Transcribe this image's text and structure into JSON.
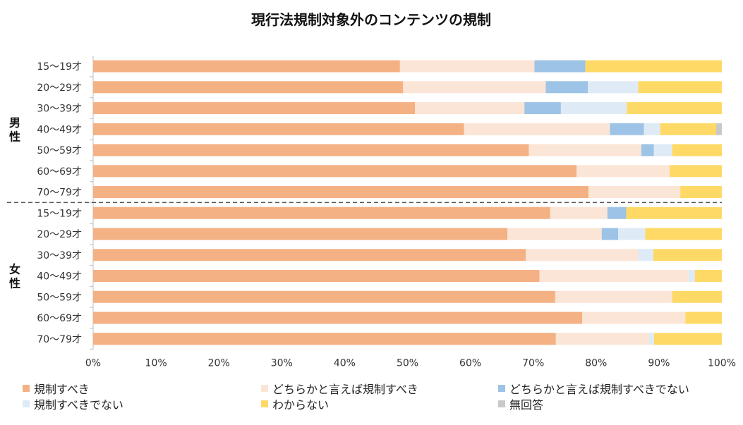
{
  "chart_data": {
    "type": "bar",
    "orientation": "horizontal-stacked-percent",
    "title": "現行法規制対象外のコンテンツの規制",
    "x_ticks": [
      "0%",
      "10%",
      "20%",
      "30%",
      "40%",
      "50%",
      "60%",
      "70%",
      "80%",
      "90%",
      "100%"
    ],
    "xlim": [
      0,
      100
    ],
    "groups": [
      {
        "label": "男性",
        "categories": [
          "15〜19才",
          "20〜29才",
          "30〜39才",
          "40〜49才",
          "50〜59才",
          "60〜69才",
          "70〜79才"
        ]
      },
      {
        "label": "女性",
        "categories": [
          "15〜19才",
          "20〜29才",
          "30〜39才",
          "40〜49才",
          "50〜59才",
          "60〜69才",
          "70〜79才"
        ]
      }
    ],
    "series": [
      {
        "name": "規制すべき",
        "color": "#F4B183",
        "values": [
          48.8,
          49.3,
          51.2,
          59.0,
          69.3,
          76.9,
          78.8,
          72.7,
          65.9,
          68.8,
          71.0,
          73.5,
          77.8,
          73.6
        ]
      },
      {
        "name": "どちらかと言えば規制すべき",
        "color": "#FBE5D6",
        "values": [
          21.4,
          22.7,
          17.4,
          23.2,
          17.9,
          14.8,
          14.6,
          9.1,
          15.0,
          17.9,
          23.7,
          18.6,
          16.4,
          14.8
        ]
      },
      {
        "name": "どちらかと言えば規制すべきでない",
        "color": "#9DC3E6",
        "values": [
          8.1,
          6.7,
          5.8,
          5.4,
          2.0,
          0,
          0,
          3.0,
          2.6,
          0,
          0,
          0,
          0,
          0
        ]
      },
      {
        "name": "規制すべきでない",
        "color": "#DEEBF7",
        "values": [
          0,
          8.0,
          10.5,
          2.6,
          2.9,
          0,
          0,
          0,
          4.3,
          2.4,
          1.0,
          0,
          0,
          0.8
        ]
      },
      {
        "name": "わからない",
        "color": "#FFD966",
        "values": [
          21.7,
          13.3,
          15.1,
          8.9,
          7.9,
          8.3,
          6.6,
          15.2,
          12.2,
          10.9,
          4.3,
          7.9,
          5.8,
          10.8
        ]
      },
      {
        "name": "無回答",
        "color": "#C9C9C9",
        "values": [
          0,
          0,
          0,
          0.9,
          0,
          0,
          0,
          0,
          0,
          0,
          0,
          0,
          0,
          0
        ]
      }
    ]
  }
}
